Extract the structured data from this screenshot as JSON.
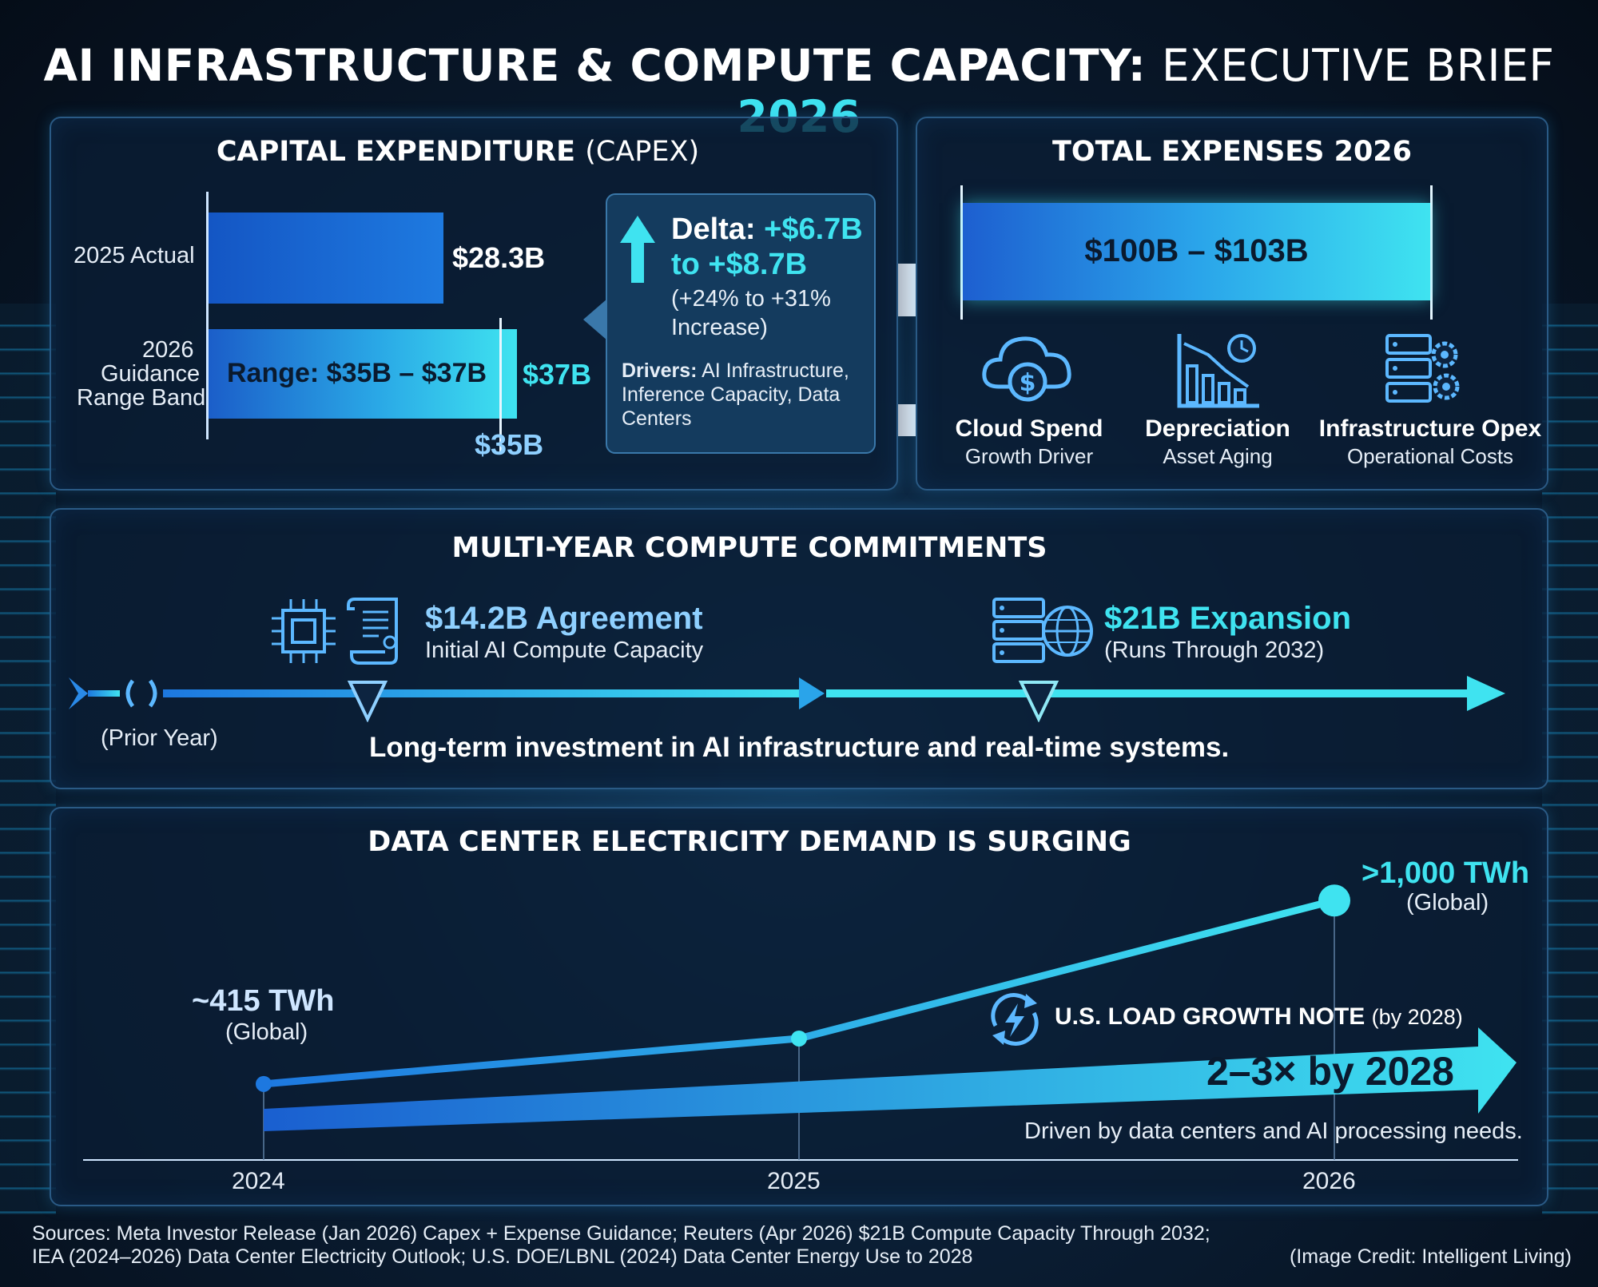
{
  "title": {
    "bold": "AI INFRASTRUCTURE & COMPUTE CAPACITY:",
    "light": "EXECUTIVE BRIEF",
    "year": "2026"
  },
  "capex": {
    "title_bold": "CAPITAL EXPENDITURE",
    "title_light": "(CAPEX)",
    "row1_label": "2025 Actual",
    "row1_value": "$28.3B",
    "row2_label_1": "2026",
    "row2_label_2": "Guidance",
    "row2_label_3": "Range Band",
    "range_text": "Range: $35B – $37B",
    "high_value": "$37B",
    "low_value": "$35B",
    "delta_title": "Delta:",
    "delta_value_1": "+$6.7B",
    "delta_value_2": "to +$8.7B",
    "delta_pct_1": "(+24% to +31%",
    "delta_pct_2": "Increase)",
    "drivers_label": "Drivers:",
    "drivers_1": "AI Infrastructure,",
    "drivers_2": "Inference Capacity, Data",
    "drivers_3": "Centers"
  },
  "total": {
    "title": "TOTAL EXPENSES 2026",
    "range": "$100B – $103B",
    "items": [
      {
        "name": "Cloud Spend",
        "sub": "Growth Driver",
        "icon": "cloud-dollar-icon"
      },
      {
        "name": "Depreciation",
        "sub": "Asset Aging",
        "icon": "depreciation-chart-icon"
      },
      {
        "name": "Infrastructure Opex",
        "sub": "Operational Costs",
        "icon": "server-gears-icon"
      }
    ]
  },
  "commitments": {
    "title": "MULTI-YEAR COMPUTE COMMITMENTS",
    "agreement_value": "$14.2B Agreement",
    "agreement_sub": "Initial AI Compute Capacity",
    "expansion_value": "$21B Expansion",
    "expansion_sub": "(Runs Through 2032)",
    "prior_year": "(Prior Year)",
    "tagline": "Long-term investment in AI infrastructure and real-time systems."
  },
  "electricity": {
    "title": "DATA CENTER ELECTRICITY DEMAND IS SURGING",
    "start_value": "~415 TWh",
    "start_sub": "(Global)",
    "end_value": ">1,000 TWh",
    "end_sub": "(Global)",
    "note_title": "U.S. LOAD GROWTH NOTE",
    "note_suffix": "(by 2028)",
    "growth": "2–3× by 2028",
    "growth_sub": "Driven by data centers and AI processing needs.",
    "x_labels": [
      "2024",
      "2025",
      "2026"
    ]
  },
  "chart_data": {
    "type": "line",
    "x": [
      "2024",
      "2025",
      "2026"
    ],
    "series": [
      {
        "values": [
          415,
          560,
          1000
        ]
      }
    ],
    "ylabel": "",
    "xlabel": ""
  },
  "footer": {
    "sources_1": "Sources: Meta Investor Release (Jan 2026) Capex + Expense Guidance; Reuters (Apr 2026) $21B Compute Capacity Through 2032;",
    "sources_2": "IEA (2024–2026) Data Center Electricity Outlook; U.S. DOE/LBNL (2024) Data Center Energy Use to 2028",
    "credit": "(Image Credit: Intelligent Living)"
  },
  "colors": {
    "cyan": "#3fe3f0",
    "blue": "#1d6fd6",
    "panel_border": "#2a5a85"
  }
}
